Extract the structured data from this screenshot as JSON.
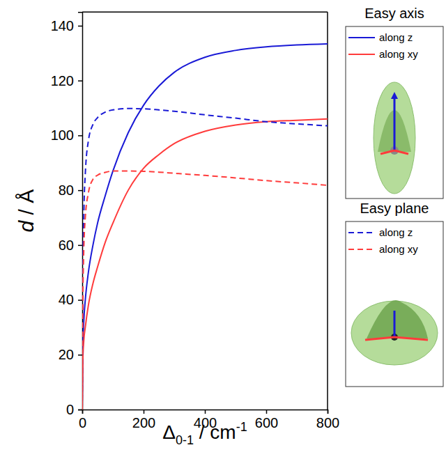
{
  "chart_data": {
    "type": "line",
    "x_label": "Δ0-1 / cm-1",
    "y_label": "d / Å",
    "x": [
      0,
      2,
      5,
      10,
      20,
      35,
      50,
      75,
      100,
      150,
      200,
      250,
      300,
      400,
      500,
      600,
      700,
      800
    ],
    "series": [
      {
        "name": "along z",
        "color": "#1a1ad6",
        "line_style": "solid",
        "values": [
          0,
          22,
          32,
          40,
          50,
          60,
          68,
          78,
          87,
          101,
          111,
          118,
          123,
          128.5,
          131,
          132.3,
          133,
          133.4
        ]
      },
      {
        "name": "along xy",
        "color": "#ff3b3b",
        "line_style": "solid",
        "values": [
          0,
          18,
          25,
          30,
          38,
          46,
          52,
          61,
          68,
          80,
          88,
          93,
          97,
          101.5,
          103.8,
          105,
          105.5,
          106
        ]
      },
      {
        "name": "along z",
        "color": "#1a1ad6",
        "line_style": "dashed",
        "values": [
          0,
          45,
          70,
          86,
          98,
          104,
          106.5,
          108.5,
          109.3,
          109.8,
          109.7,
          109.3,
          108.8,
          107.5,
          106.3,
          105,
          104.2,
          103.5
        ]
      },
      {
        "name": "along xy",
        "color": "#ff3b3b",
        "line_style": "dashed",
        "values": [
          0,
          40,
          58,
          70,
          79,
          84,
          85.5,
          86.5,
          87,
          87,
          86.9,
          86.6,
          86.2,
          85.4,
          84.5,
          83.5,
          82.7,
          81.8
        ]
      }
    ],
    "legend_groups": [
      {
        "title": "Easy axis",
        "line_style": "solid"
      },
      {
        "title": "Easy plane",
        "line_style": "dashed"
      }
    ],
    "xlim": [
      0,
      800
    ],
    "ylim": [
      0,
      145
    ],
    "xticks": [
      0,
      200,
      400,
      600,
      800
    ],
    "yticks": [
      0,
      20,
      40,
      60,
      80,
      100,
      120,
      140
    ],
    "legend": "right",
    "grid": false
  }
}
